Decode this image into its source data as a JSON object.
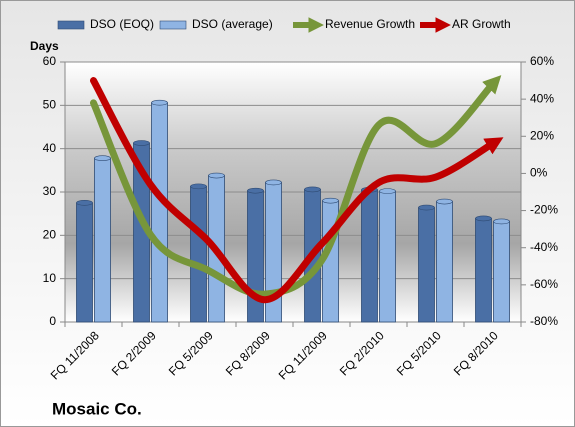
{
  "chart_data": {
    "type": "bar-line",
    "title": "Mosaic Co.",
    "y_axis_label": "Days",
    "categories": [
      "FQ 11/2008",
      "FQ 2/2009",
      "FQ 5/2009",
      "FQ 8/2009",
      "FQ 11/2009",
      "FQ 2/2010",
      "FQ 5/2010",
      "FQ 8/2010"
    ],
    "series": [
      {
        "name": "DSO (EOQ)",
        "color": "#4a6fa5",
        "type": "bar",
        "values": [
          27.5,
          41.3,
          31.3,
          30.3,
          30.6,
          30.5,
          26.4,
          23.9
        ]
      },
      {
        "name": "DSO (average)",
        "color": "#8fb4e3",
        "type": "bar",
        "values": [
          37.8,
          50.6,
          33.8,
          32.2,
          28.0,
          30.2,
          27.8,
          23.2
        ]
      },
      {
        "name": "Revenue Growth",
        "color": "#77963a",
        "type": "line",
        "axis": "y2",
        "values": [
          38,
          -33,
          -52,
          -65,
          -47,
          26,
          16,
          48
        ]
      },
      {
        "name": "AR Growth",
        "color": "#c00000",
        "type": "line",
        "axis": "y2",
        "values": [
          50,
          -6,
          -36,
          -68,
          -38,
          -5,
          -2,
          16
        ]
      }
    ],
    "ylim": [
      0,
      60
    ],
    "yticks": [
      0,
      10,
      20,
      30,
      40,
      50,
      60
    ],
    "y2lim": [
      -80,
      60
    ],
    "y2ticks": [
      {
        "value": -80,
        "label": "-80%"
      },
      {
        "value": -60,
        "label": "-60%"
      },
      {
        "value": -40,
        "label": "-40%"
      },
      {
        "value": -20,
        "label": "-20%"
      },
      {
        "value": 0,
        "label": "0%"
      },
      {
        "value": 20,
        "label": "20%"
      },
      {
        "value": 40,
        "label": "40%"
      },
      {
        "value": 60,
        "label": "60%"
      }
    ],
    "grid": true
  }
}
